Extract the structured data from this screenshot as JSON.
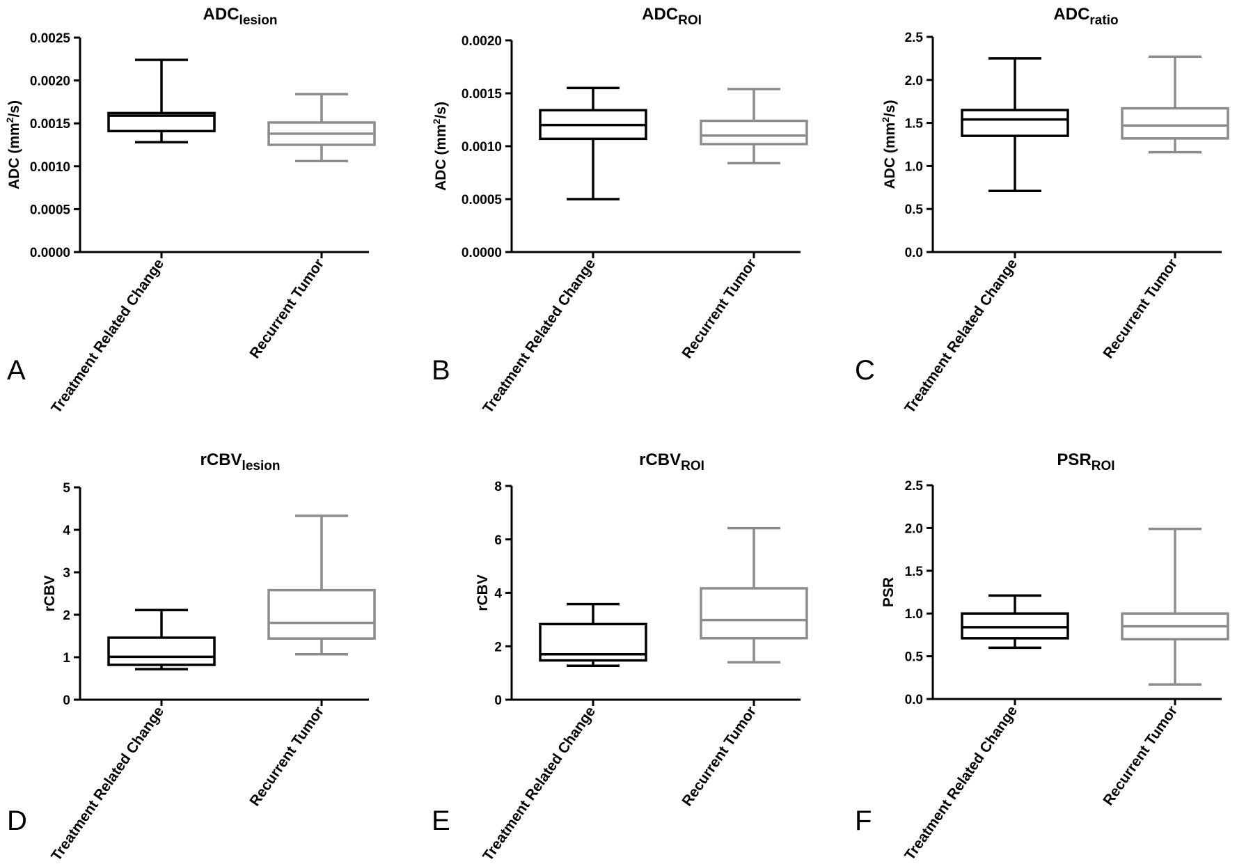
{
  "categories": [
    "Treatment Related Change",
    "Recurrent Tumor"
  ],
  "colors": {
    "treatment": "#000000",
    "recurrent": "#8c8c8c",
    "axis": "#000000"
  },
  "chart_data": [
    {
      "type": "boxplot",
      "panel_label": "A",
      "title": "ADC",
      "title_sub": "lesion",
      "title_sup": "",
      "ylabel": "ADC (mm",
      "ylabel_sup": "2",
      "ylabel_tail": "/s)",
      "ylim": [
        0,
        0.0025
      ],
      "yticks": [
        "0.0000",
        "0.0005",
        "0.0010",
        "0.0015",
        "0.0020",
        "0.0025"
      ],
      "categories": [
        "Treatment Related Change",
        "Recurrent Tumor"
      ],
      "boxes": [
        {
          "min": 0.00128,
          "q1": 0.00141,
          "median": 0.00159,
          "q3": 0.00162,
          "max": 0.00224
        },
        {
          "min": 0.00106,
          "q1": 0.00125,
          "median": 0.00138,
          "q3": 0.00151,
          "max": 0.00184
        }
      ]
    },
    {
      "type": "boxplot",
      "panel_label": "B",
      "title": "ADC",
      "title_sub": "ROI",
      "title_sup": "",
      "ylabel": "ADC (mm",
      "ylabel_sup": "2",
      "ylabel_tail": "/s)",
      "ylim": [
        0,
        0.002
      ],
      "yticks": [
        "0.0000",
        "0.0005",
        "0.0010",
        "0.0015",
        "0.0020"
      ],
      "categories": [
        "Treatment Related Change",
        "Recurrent Tumor"
      ],
      "boxes": [
        {
          "min": 0.0005,
          "q1": 0.00107,
          "median": 0.0012,
          "q3": 0.00134,
          "max": 0.00155
        },
        {
          "min": 0.00084,
          "q1": 0.00102,
          "median": 0.0011,
          "q3": 0.00124,
          "max": 0.00154
        }
      ]
    },
    {
      "type": "boxplot",
      "panel_label": "C",
      "title": "ADC",
      "title_sub": "ratio",
      "title_sup": "",
      "ylabel": "ADC (mm",
      "ylabel_sup": "2",
      "ylabel_tail": "/s)",
      "ylim": [
        0,
        2.5
      ],
      "yticks": [
        "0.0",
        "0.5",
        "1.0",
        "1.5",
        "2.0",
        "2.5"
      ],
      "categories": [
        "Treatment Related Change",
        "Recurrent Tumor"
      ],
      "boxes": [
        {
          "min": 0.71,
          "q1": 1.35,
          "median": 1.54,
          "q3": 1.65,
          "max": 2.25
        },
        {
          "min": 1.16,
          "q1": 1.32,
          "median": 1.47,
          "q3": 1.67,
          "max": 2.27
        }
      ]
    },
    {
      "type": "boxplot",
      "panel_label": "D",
      "title": "rCBV",
      "title_sub": "lesion",
      "title_sup": "",
      "ylabel": "rCBV",
      "ylabel_sup": "",
      "ylabel_tail": "",
      "ylim": [
        0,
        5
      ],
      "yticks": [
        "0",
        "1",
        "2",
        "3",
        "4",
        "5"
      ],
      "categories": [
        "Treatment Related Change",
        "Recurrent Tumor"
      ],
      "boxes": [
        {
          "min": 0.72,
          "q1": 0.82,
          "median": 1.01,
          "q3": 1.46,
          "max": 2.11
        },
        {
          "min": 1.07,
          "q1": 1.44,
          "median": 1.81,
          "q3": 2.58,
          "max": 4.33
        }
      ]
    },
    {
      "type": "boxplot",
      "panel_label": "E",
      "title": "rCBV",
      "title_sub": "ROI",
      "title_sup": "",
      "ylabel": "rCBV",
      "ylabel_sup": "",
      "ylabel_tail": "",
      "ylim": [
        0,
        8
      ],
      "yticks": [
        "0",
        "2",
        "4",
        "6",
        "8"
      ],
      "categories": [
        "Treatment Related Change",
        "Recurrent Tumor"
      ],
      "boxes": [
        {
          "min": 1.27,
          "q1": 1.47,
          "median": 1.7,
          "q3": 2.83,
          "max": 3.58
        },
        {
          "min": 1.4,
          "q1": 2.3,
          "median": 2.98,
          "q3": 4.17,
          "max": 6.42
        }
      ]
    },
    {
      "type": "boxplot",
      "panel_label": "F",
      "title": "PSR",
      "title_sub": "ROI",
      "title_sup": "",
      "ylabel": "PSR",
      "ylabel_sup": "",
      "ylabel_tail": "",
      "ylim": [
        0,
        2.5
      ],
      "yticks": [
        "0.0",
        "0.5",
        "1.0",
        "1.5",
        "2.0",
        "2.5"
      ],
      "categories": [
        "Treatment Related Change",
        "Recurrent Tumor"
      ],
      "boxes": [
        {
          "min": 0.6,
          "q1": 0.71,
          "median": 0.84,
          "q3": 1.0,
          "max": 1.21
        },
        {
          "min": 0.17,
          "q1": 0.7,
          "median": 0.85,
          "q3": 1.0,
          "max": 1.99
        }
      ]
    }
  ]
}
